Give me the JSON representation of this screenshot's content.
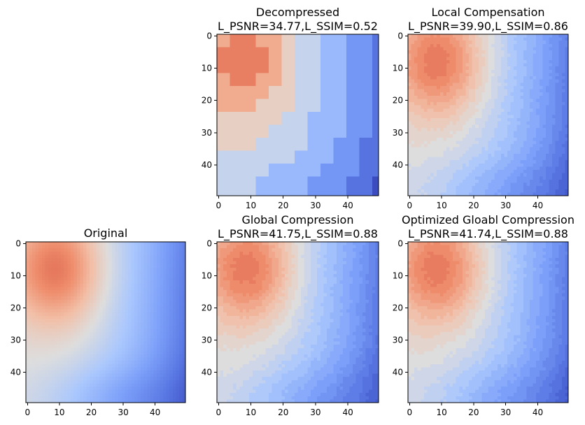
{
  "chart_data": [
    {
      "type": "heatmap",
      "title": "Original",
      "subtitle": "",
      "variant": "original",
      "xlabel": "",
      "ylabel": "",
      "xlim": [
        0,
        49
      ],
      "ylim": [
        49,
        0
      ],
      "x_ticks": [
        0,
        10,
        20,
        30,
        40
      ],
      "y_ticks": [
        0,
        10,
        20,
        30,
        40
      ],
      "colormap": "coolwarm",
      "grid": false
    },
    {
      "type": "heatmap",
      "title": "Decompressed",
      "subtitle": "L_PSNR=34.77,L_SSIM=0.52",
      "variant": "decompressed",
      "xlabel": "",
      "ylabel": "",
      "xlim": [
        0,
        49
      ],
      "ylim": [
        49,
        0
      ],
      "x_ticks": [
        0,
        10,
        20,
        30,
        40
      ],
      "y_ticks": [
        0,
        10,
        20,
        30,
        40
      ],
      "colormap": "coolwarm",
      "grid": false
    },
    {
      "type": "heatmap",
      "title": "Local Compensation",
      "subtitle": "L_PSNR=39.90,L_SSIM=0.86",
      "variant": "local",
      "xlabel": "",
      "ylabel": "",
      "xlim": [
        0,
        49
      ],
      "ylim": [
        49,
        0
      ],
      "x_ticks": [
        0,
        10,
        20,
        30,
        40
      ],
      "y_ticks": [
        0,
        10,
        20,
        30,
        40
      ],
      "colormap": "coolwarm",
      "grid": false
    },
    {
      "type": "heatmap",
      "title": "Global Compression",
      "subtitle": "L_PSNR=41.75,L_SSIM=0.88",
      "variant": "global",
      "xlabel": "",
      "ylabel": "",
      "xlim": [
        0,
        49
      ],
      "ylim": [
        49,
        0
      ],
      "x_ticks": [
        0,
        10,
        20,
        30,
        40
      ],
      "y_ticks": [
        0,
        10,
        20,
        30,
        40
      ],
      "colormap": "coolwarm",
      "grid": false
    },
    {
      "type": "heatmap",
      "title": "Optimized Gloabl Compression",
      "subtitle": "L_PSNR=41.74,L_SSIM=0.88",
      "variant": "optimized",
      "xlabel": "",
      "ylabel": "",
      "xlim": [
        0,
        49
      ],
      "ylim": [
        49,
        0
      ],
      "x_ticks": [
        0,
        10,
        20,
        30,
        40
      ],
      "y_ticks": [
        0,
        10,
        20,
        30,
        40
      ],
      "colormap": "coolwarm",
      "grid": false
    }
  ]
}
